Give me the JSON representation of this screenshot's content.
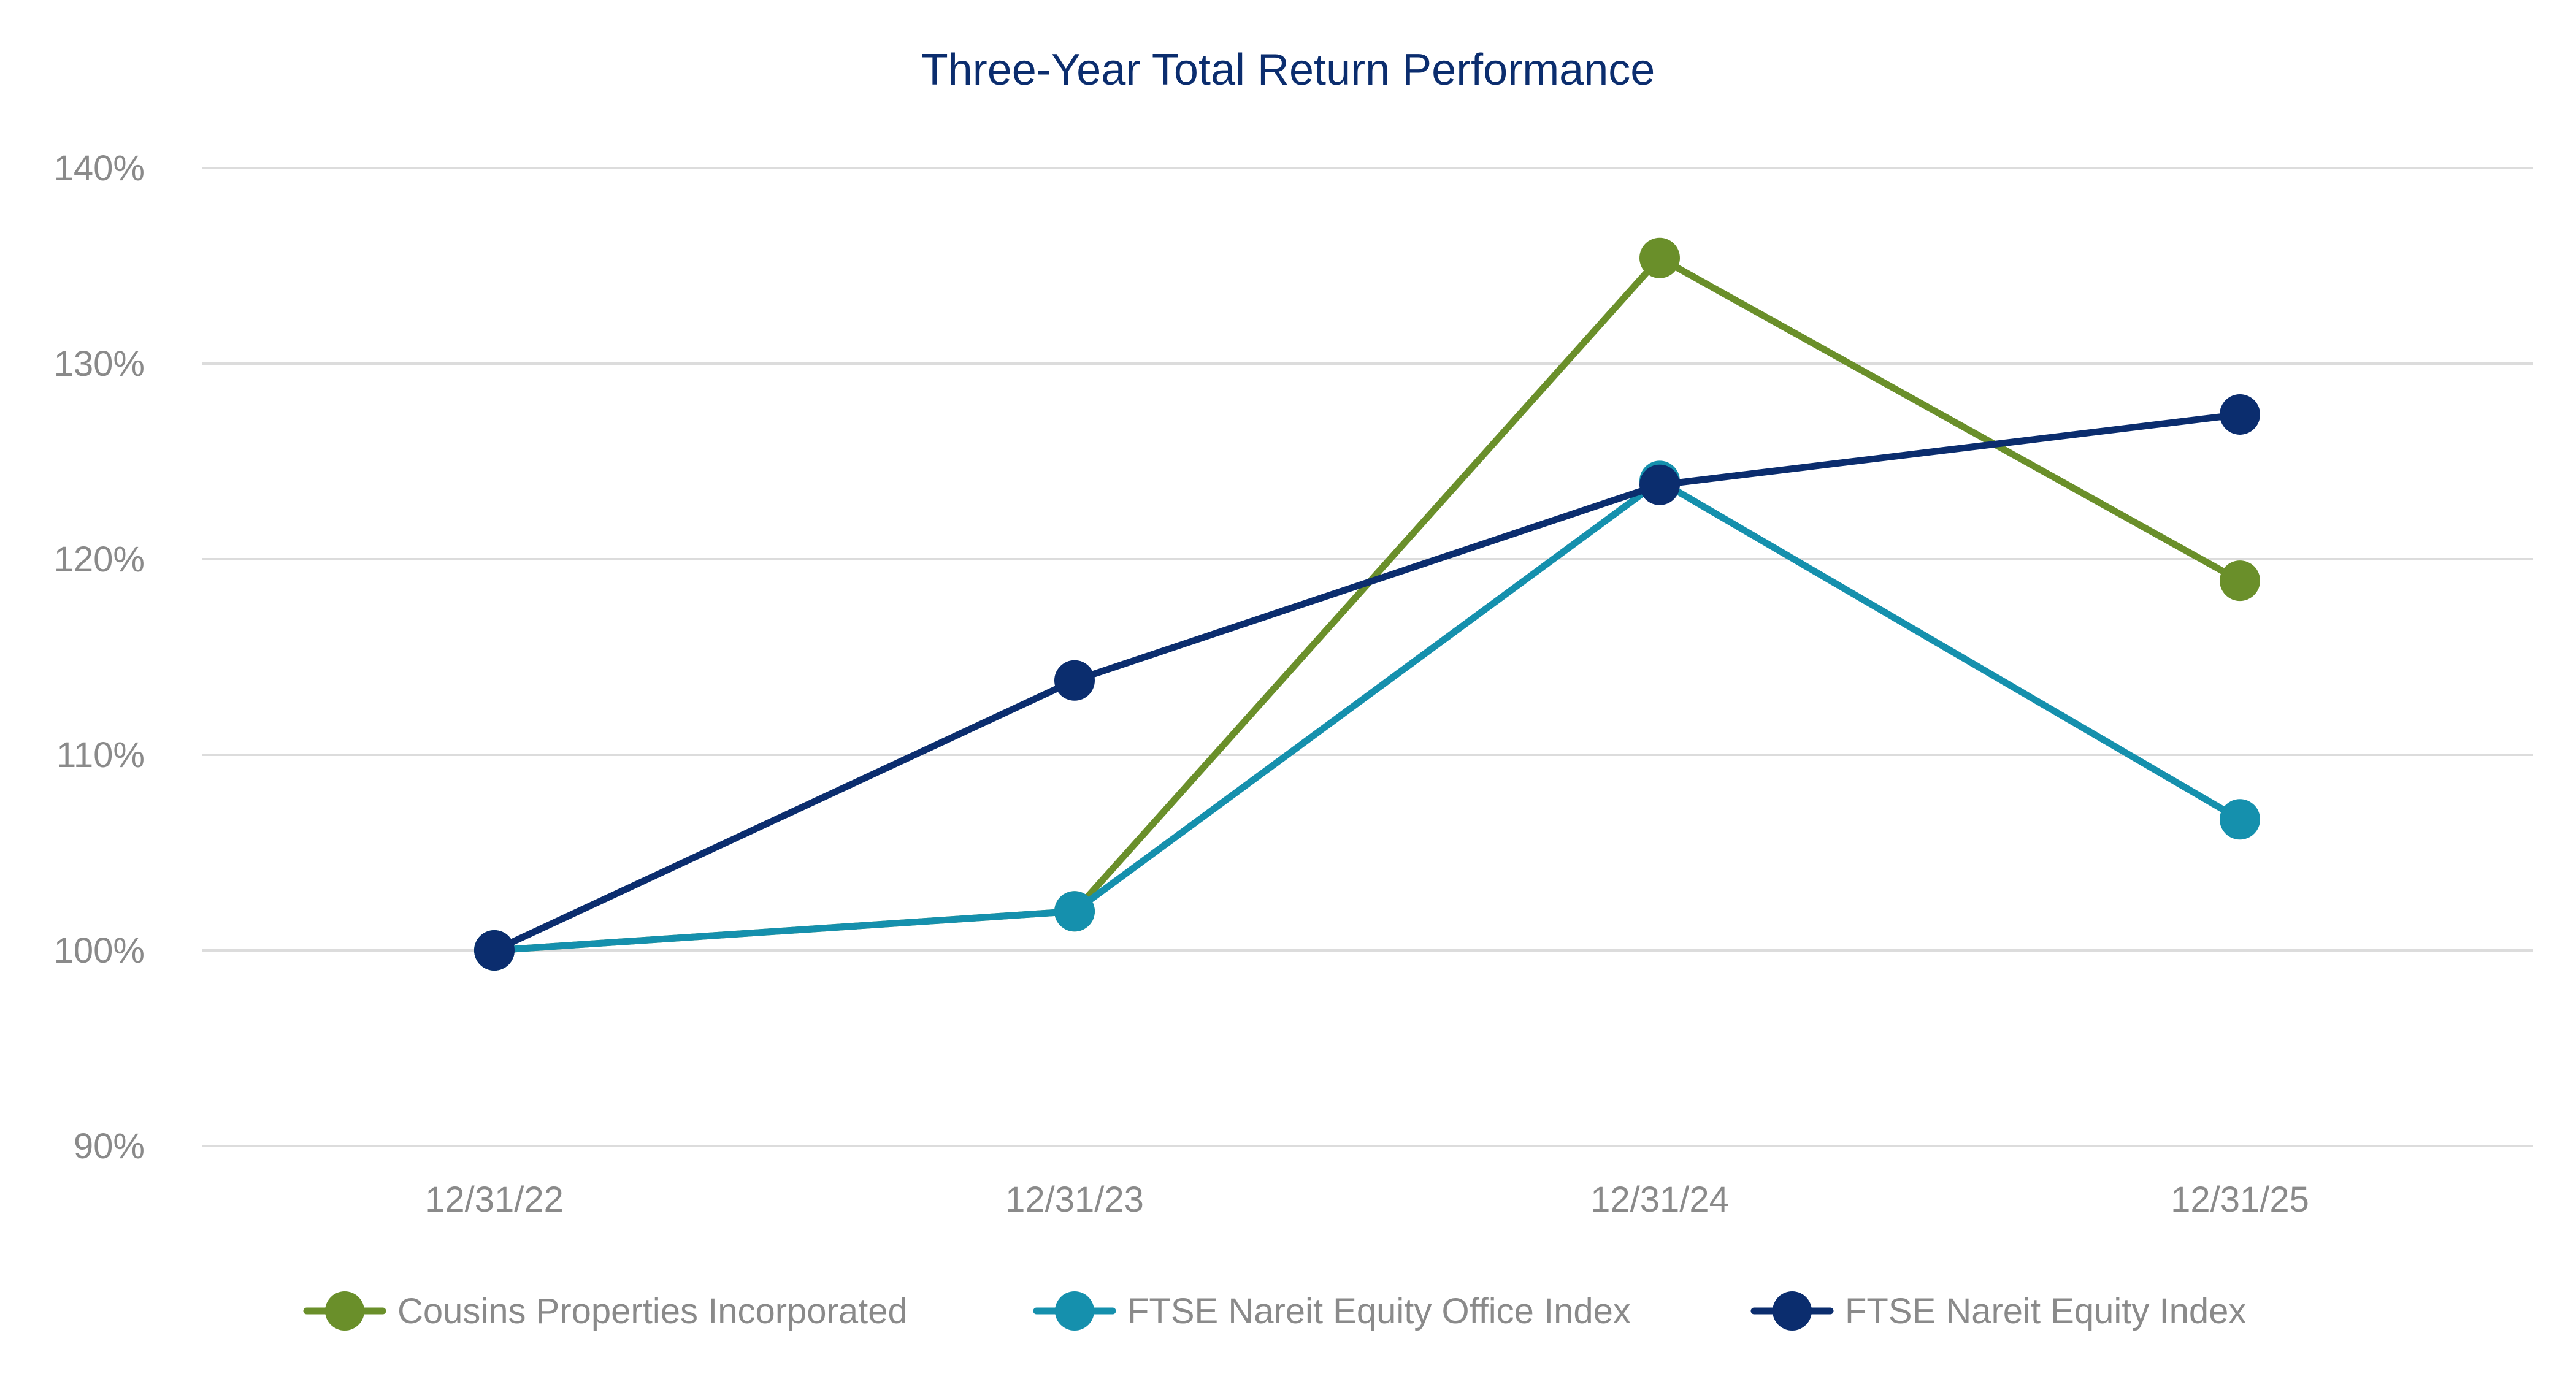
{
  "chart_data": {
    "type": "line",
    "title": "Three-Year Total Return Performance",
    "xlabel": "",
    "ylabel": "",
    "categories": [
      "12/31/22",
      "12/31/23",
      "12/31/24",
      "12/31/25"
    ],
    "ylim": [
      90,
      140
    ],
    "yticks": [
      90,
      100,
      110,
      120,
      130,
      140
    ],
    "ytick_labels": [
      "90%",
      "100%",
      "110%",
      "120%",
      "130%",
      "140%"
    ],
    "grid": true,
    "legend_position": "bottom",
    "series": [
      {
        "name": "Cousins Properties Incorporated",
        "color": "#6a8f2a",
        "values": [
          100.0,
          102.0,
          135.4,
          118.9
        ]
      },
      {
        "name": "FTSE Nareit Equity Office Index",
        "color": "#1590ad",
        "values": [
          100.0,
          102.0,
          124.0,
          106.7
        ]
      },
      {
        "name": "FTSE Nareit Equity Index",
        "color": "#0b2d6e",
        "values": [
          100.0,
          113.8,
          123.8,
          127.4
        ]
      }
    ]
  }
}
